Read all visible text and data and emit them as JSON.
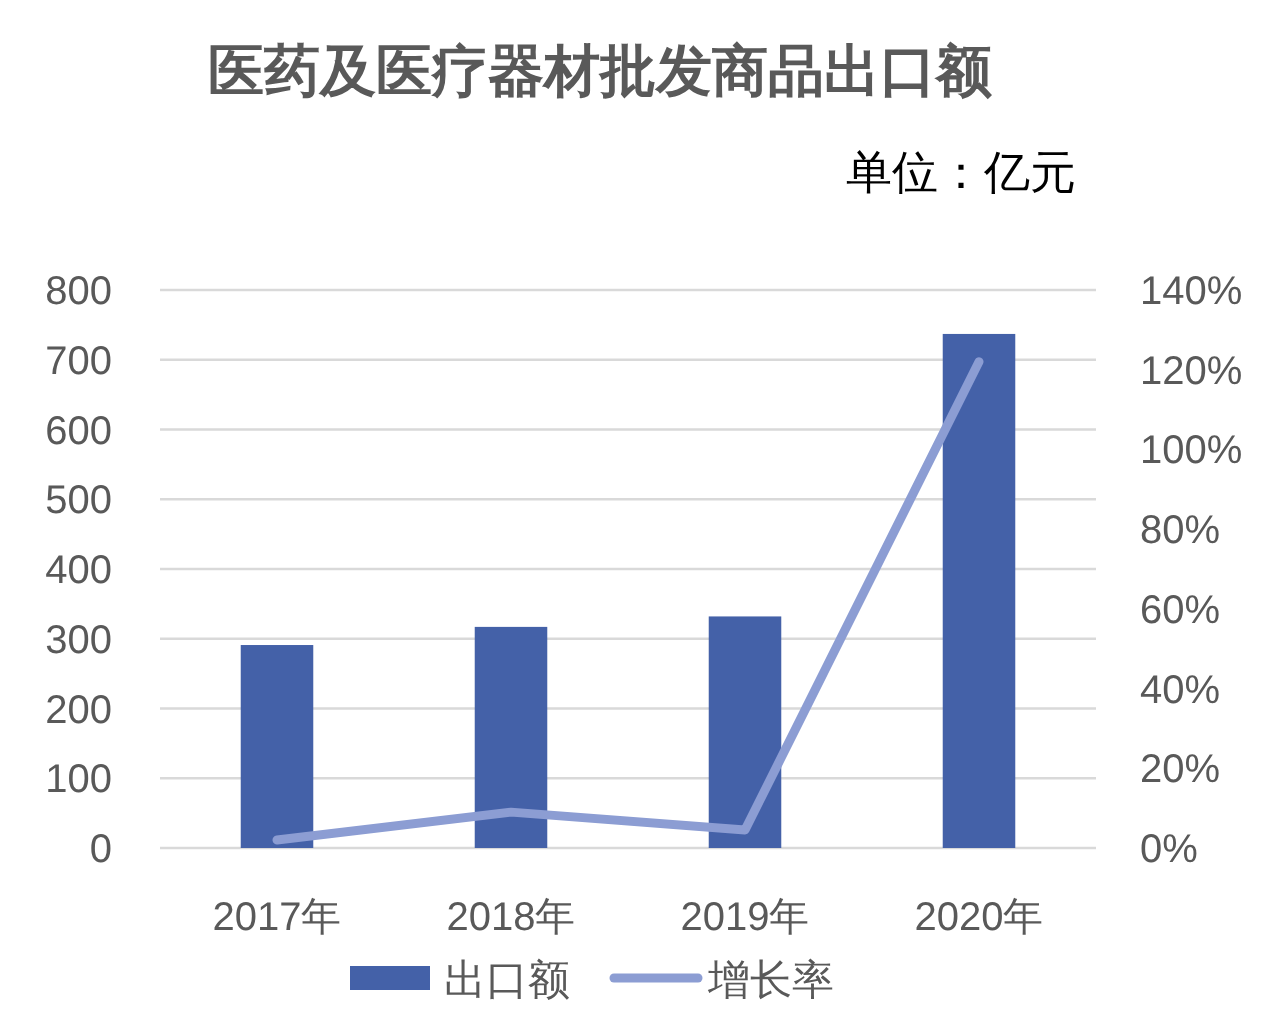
{
  "chart_data": {
    "type": "bar",
    "title": "医药及医疗器材批发商品出口额",
    "annotations": [
      "单位：亿元"
    ],
    "categories": [
      "2017年",
      "2018年",
      "2019年",
      "2020年"
    ],
    "series": [
      {
        "name": "出口额",
        "color": "#4461a8",
        "values": [
          291,
          317,
          332,
          737
        ]
      },
      {
        "name": "增长率",
        "type": "line",
        "axis": "y2",
        "color": "#8c9dd3",
        "values": [
          2,
          9,
          4.5,
          122
        ]
      }
    ],
    "ylim": [
      0,
      800
    ],
    "yticks": [
      0,
      100,
      200,
      300,
      400,
      500,
      600,
      700,
      800
    ],
    "y2lim": [
      0,
      140
    ],
    "y2ticks": [
      {
        "value": 0,
        "label": "0%"
      },
      {
        "value": 20,
        "label": "20%"
      },
      {
        "value": 40,
        "label": "40%"
      },
      {
        "value": 60,
        "label": "60%"
      },
      {
        "value": 80,
        "label": "80%"
      },
      {
        "value": 100,
        "label": "100%"
      },
      {
        "value": 120,
        "label": "120%"
      },
      {
        "value": 140,
        "label": "140%"
      }
    ],
    "grid": "y",
    "legend": "bottom"
  }
}
